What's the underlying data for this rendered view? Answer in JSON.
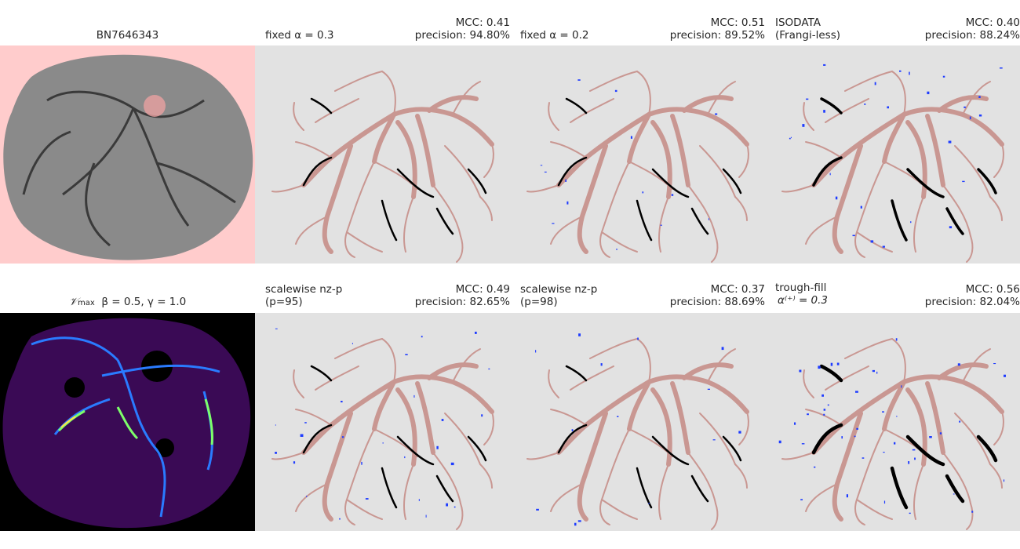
{
  "colors": {
    "panel_bg_gray": "#e2e2e2",
    "mask_bg_pink": "#ffcccc",
    "vesselness_bg": "#000000",
    "true_positive": "#c99792",
    "false_negative": "#000000",
    "false_positive": "#1e3cff",
    "tissue_gray": "#808080"
  },
  "top_row": {
    "panel1": {
      "title": "BN7646343"
    },
    "panel2": {
      "left_line1": "fixed α = 0.3",
      "left_line2": "",
      "mcc": "MCC: 0.41",
      "precision": "precision: 94.80%"
    },
    "panel3": {
      "left_line1": "fixed α = 0.2",
      "left_line2": "",
      "mcc": "MCC: 0.51",
      "precision": "precision: 89.52%"
    },
    "panel4": {
      "left_line1": "ISODATA",
      "left_line2": "(Frangi-less)",
      "mcc": "MCC: 0.40",
      "precision": "precision: 88.24%"
    }
  },
  "bottom_row": {
    "panel1": {
      "title_main": "𝒱",
      "title_sub": "max",
      "title_rest": "  β = 0.5, γ = 1.0"
    },
    "panel2": {
      "left_line1": "scalewise nz-p",
      "left_line2": "(p=95)",
      "mcc": "MCC: 0.49",
      "precision": "precision: 82.65%"
    },
    "panel3": {
      "left_line1": "scalewise nz-p",
      "left_line2": "(p=98)",
      "mcc": "MCC: 0.37",
      "precision": "precision: 88.69%"
    },
    "panel4": {
      "left_line1": "trough-fill",
      "left_line2": "α⁽⁺⁾ = 0.3",
      "mcc": "MCC: 0.56",
      "precision": "precision: 82.04%"
    }
  }
}
